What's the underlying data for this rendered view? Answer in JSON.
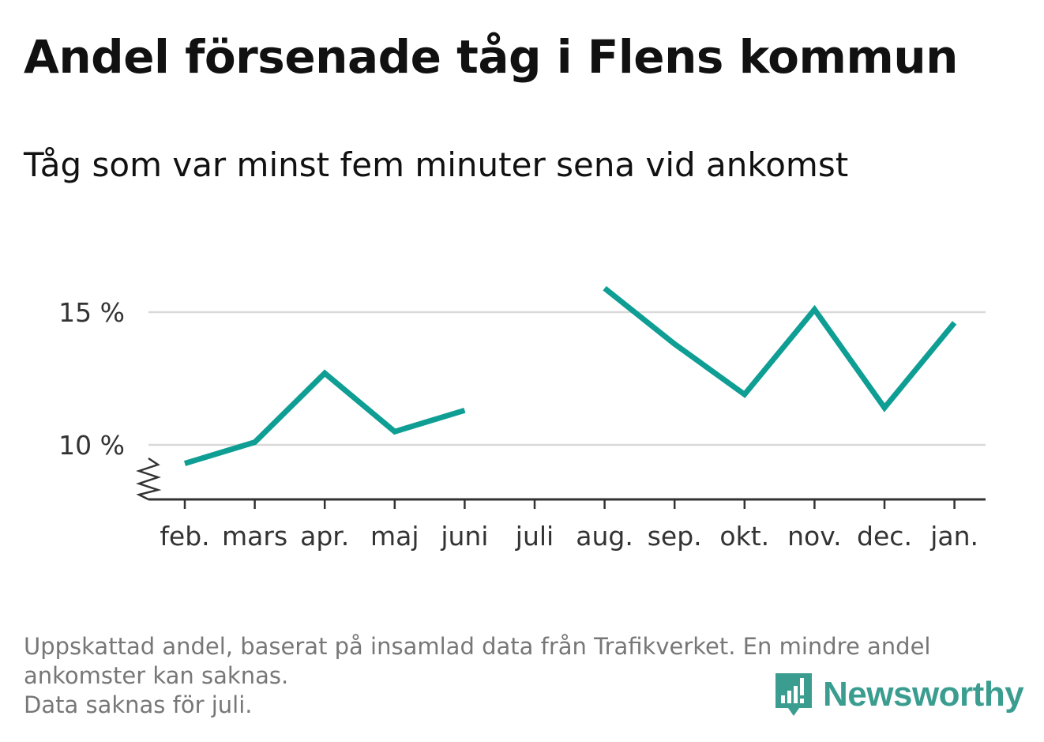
{
  "title": "Andel försenade tåg i Flens kommun",
  "subtitle": "Tåg som var minst fem minuter sena vid ankomst",
  "footnote": [
    "Uppskattad andel, baserat på insamlad data från Trafikverket. En mindre andel",
    "ankomster kan saknas.",
    "Data saknas för juli."
  ],
  "logo": {
    "text": "Newsworthy",
    "color": "#3a9d90"
  },
  "colors": {
    "line": "#0f9e94",
    "grid": "#d9d9d9",
    "axis": "#333333"
  },
  "chart_data": {
    "type": "line",
    "categories": [
      "feb.",
      "mars",
      "apr.",
      "maj",
      "juni",
      "juli",
      "aug.",
      "sep.",
      "okt.",
      "nov.",
      "dec.",
      "jan."
    ],
    "series": [
      {
        "values": [
          9.3,
          10.1,
          12.7,
          10.5,
          11.3,
          null,
          15.9,
          13.8,
          11.9,
          15.1,
          11.4,
          14.6
        ]
      }
    ],
    "yticks": [
      10,
      15
    ],
    "ytick_labels": [
      "10 %",
      "15 %"
    ],
    "ylim": [
      8,
      16
    ],
    "y_axis_break": true,
    "grid": true,
    "legend": "none"
  }
}
